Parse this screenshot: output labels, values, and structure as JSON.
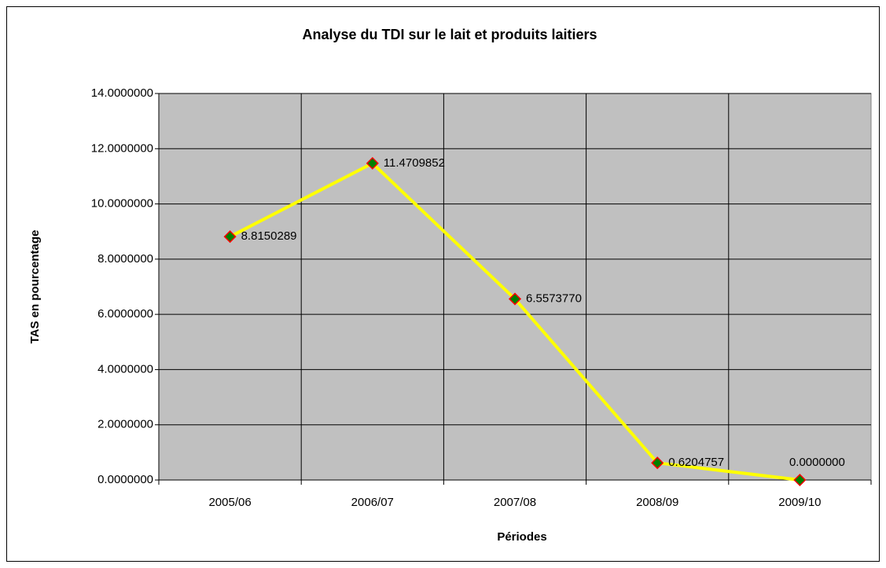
{
  "chart_data": {
    "type": "line",
    "title": "Analyse du TDI sur le lait et produits laitiers",
    "x_label": "Périodes",
    "y_label": "TAS en pourcentage",
    "categories": [
      "2005/06",
      "2006/07",
      "2007/08",
      "2008/09",
      "2009/10"
    ],
    "values": [
      8.8150289,
      11.4709852,
      6.557377,
      0.6204757,
      0
    ],
    "value_labels": [
      "8.8150289",
      "11.4709852",
      "6.5573770",
      "0.6204757",
      "0.0000000"
    ],
    "color": "#ffff00",
    "marker_color": "#008000",
    "marker_edge_color": "#ff0000",
    "ylim": [
      0,
      14
    ],
    "yticks": [
      {
        "value": 0,
        "label": "0.0000000"
      },
      {
        "value": 2,
        "label": "2.0000000"
      },
      {
        "value": 4,
        "label": "4.0000000"
      },
      {
        "value": 6,
        "label": "6.0000000"
      },
      {
        "value": 8,
        "label": "8.0000000"
      },
      {
        "value": 10,
        "label": "10.0000000"
      },
      {
        "value": 12,
        "label": "12.0000000"
      },
      {
        "value": 14,
        "label": "14.0000000"
      }
    ],
    "grid": true
  }
}
